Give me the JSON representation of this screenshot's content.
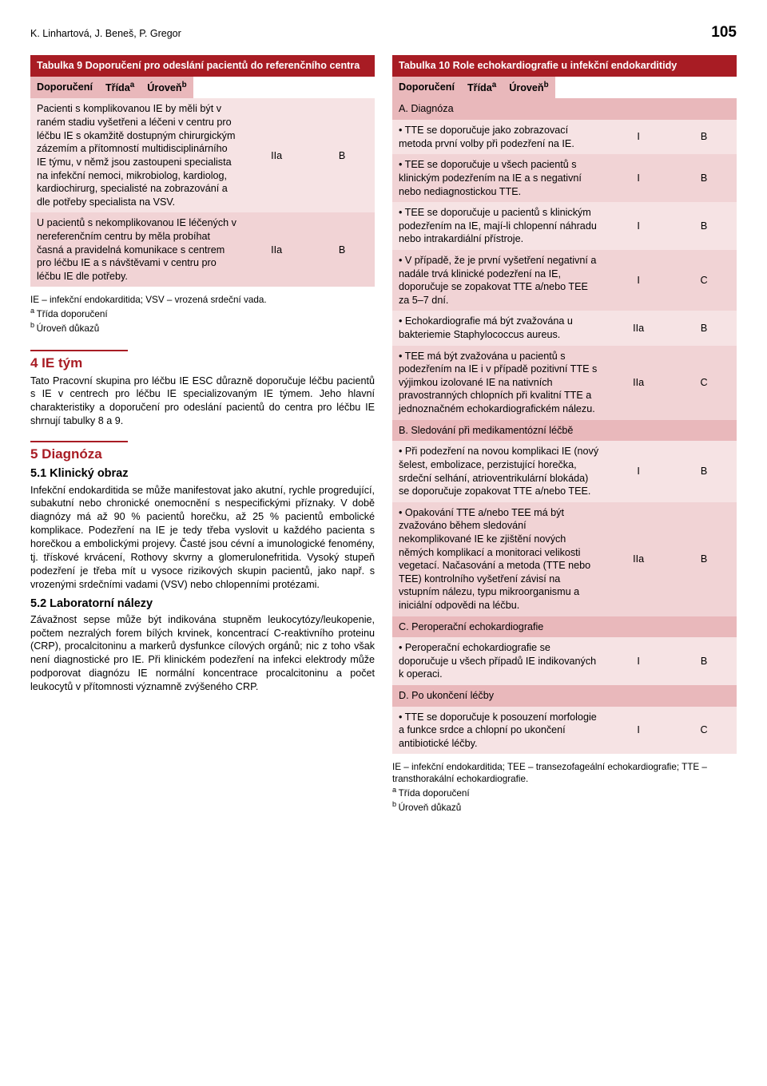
{
  "header": {
    "authors": "K. Linhartová, J. Beneš, P. Gregor",
    "page": "105"
  },
  "table9": {
    "title": "Tabulka 9 Doporučení pro odeslání pacientů do referenčního centra",
    "col1": "Doporučení",
    "col2": "Třída",
    "col2_sup": "a",
    "col3": "Úroveň",
    "col3_sup": "b",
    "rows": [
      {
        "text": "Pacienti s komplikovanou IE by měli být v raném stadiu vyšetřeni a léčeni v centru pro léčbu IE s okamžitě dostupným chirurgickým zázemím a přítomností multidisciplinárního IE týmu, v němž jsou zastoupeni specialista na infekční nemoci, mikrobiolog, kardiolog, kardiochirurg, specialisté na zobrazování a dle potřeby specialista na VSV.",
        "class": "IIa",
        "level": "B"
      },
      {
        "text": "U pacientů s nekomplikovanou IE léčených v nereferenčním centru by měla probíhat časná a pravidelná komunikace s centrem pro léčbu IE a s návštěvami v centru pro léčbu IE dle potřeby.",
        "class": "IIa",
        "level": "B"
      }
    ],
    "footnote": "IE – infekční endokarditida; VSV – vrozená srdeční vada.",
    "footnote_a": "Třída doporučení",
    "footnote_b": "Úroveň důkazů"
  },
  "sections": {
    "s4_title": "4 IE tým",
    "s4_body": "Tato Pracovní skupina pro léčbu IE ESC důrazně doporučuje léčbu pacientů s IE v centrech pro léčbu IE specializovaným IE týmem. Jeho hlavní charakteristiky a doporučení pro odeslání pacientů do centra pro léčbu IE shrnují tabulky 8 a 9.",
    "s5_title": "5 Diagnóza",
    "s51_title": "5.1 Klinický obraz",
    "s51_body": "Infekční endokarditida se může manifestovat jako akutní, rychle progredující, subakutní nebo chronické onemocnění s nespecifickými příznaky. V době diagnózy má až 90 % pacientů horečku, až 25 % pacientů embolické komplikace. Podezření na IE je tedy třeba vyslovit u každého pacienta s horečkou a embolickými projevy. Časté jsou cévní a imunologické fenomény, tj. třískové krvácení, Rothovy skvrny a glomerulonefritida. Vysoký stupeň podezření je třeba mít u vysoce rizikových skupin pacientů, jako např. s vrozenými srdečními vadami (VSV) nebo chlopenními protézami.",
    "s52_title": "5.2 Laboratorní nálezy",
    "s52_body": "Závažnost sepse může být indikována stupněm leukocytózy/leukopenie, počtem nezralých forem bílých krvinek, koncentrací C-reaktivního proteinu (CRP), procalcitoninu a markerů dysfunkce cílových orgánů; nic z toho však není diagnostické pro IE. Při klinickém podezření na infekci elektrody může podporovat diagnózu IE normální koncentrace procalcitoninu a počet leukocytů v přítomnosti významně zvýšeného CRP."
  },
  "table10": {
    "title": "Tabulka 10 Role echokardiografie u infekční endokarditidy",
    "col1": "Doporučení",
    "col2": "Třída",
    "col2_sup": "a",
    "col3": "Úroveň",
    "col3_sup": "b",
    "sectA": "A. Diagnóza",
    "rowsA": [
      {
        "text": "• TTE se doporučuje jako zobrazovací metoda první volby při podezření na IE.",
        "class": "I",
        "level": "B"
      },
      {
        "text": "• TEE se doporučuje u všech pacientů s klinickým podezřením na IE a s negativní nebo nediagnostickou TTE.",
        "class": "I",
        "level": "B"
      },
      {
        "text": "• TEE se doporučuje u pacientů s klinickým podezřením na IE, mají-li chlopenní náhradu nebo intrakardiální přístroje.",
        "class": "I",
        "level": "B"
      },
      {
        "text": "• V případě, že je první vyšetření negativní a nadále trvá klinické podezření na IE, doporučuje se zopakovat TTE a/nebo TEE za 5–7 dní.",
        "class": "I",
        "level": "C"
      },
      {
        "text": "• Echokardiografie má být zvažována u bakteriemie Staphylococcus aureus.",
        "class": "IIa",
        "level": "B"
      },
      {
        "text": "• TEE má být zvažována u pacientů s podezřením na IE i v případě pozitivní TTE s výjimkou izolované IE na nativních pravostranných chlopních při kvalitní TTE a jednoznačném echokardiografickém nálezu.",
        "class": "IIa",
        "level": "C"
      }
    ],
    "sectB": "B. Sledování při medikamentózní léčbě",
    "rowsB": [
      {
        "text": "• Při podezření na novou komplikaci IE (nový šelest, embolizace, perzistující horečka, srdeční selhání, atrioventrikulární blokáda) se doporučuje zopakovat TTE a/nebo TEE.",
        "class": "I",
        "level": "B"
      },
      {
        "text": "• Opakování TTE a/nebo TEE má být zvažováno během sledování nekomplikované IE ke zjištění nových němých komplikací a monitoraci velikosti vegetací. Načasování a metoda (TTE nebo TEE) kontrolního vyšetření závisí na vstupním nálezu, typu mikroorganismu a iniciální odpovědi na léčbu.",
        "class": "IIa",
        "level": "B"
      }
    ],
    "sectC": "C. Peroperační echokardiografie",
    "rowsC": [
      {
        "text": "• Peroperační echokardiografie se doporučuje u všech případů IE indikovaných k operaci.",
        "class": "I",
        "level": "B"
      }
    ],
    "sectD": "D. Po ukončení léčby",
    "rowsD": [
      {
        "text": "• TTE se doporučuje k posouzení morfologie a funkce srdce a chlopní po ukončení antibiotické léčby.",
        "class": "I",
        "level": "C"
      }
    ],
    "footnote": "IE – infekční endokarditida; TEE – transezofageální echokardiografie; TTE – transthorakální echokardiografie.",
    "footnote_a": "Třída doporučení",
    "footnote_b": "Úroveň důkazů"
  }
}
